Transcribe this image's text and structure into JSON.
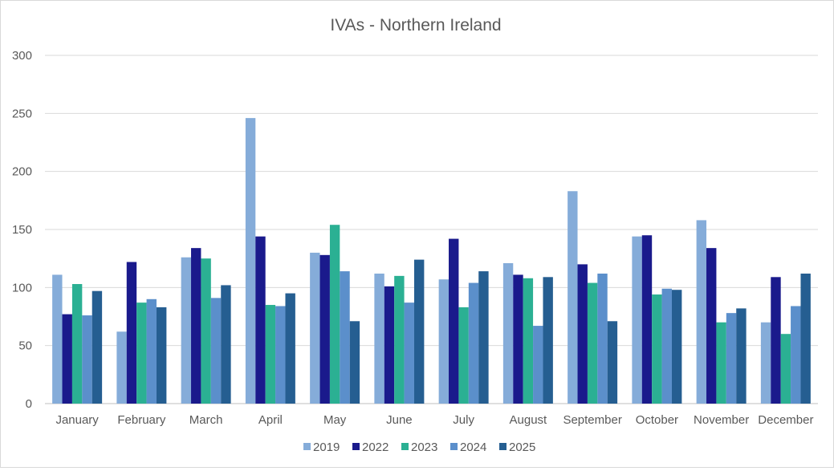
{
  "chart_data": {
    "type": "bar",
    "title": "IVAs - Northern Ireland",
    "xlabel": "",
    "ylabel": "",
    "ylim": [
      0,
      300
    ],
    "yticks": [
      0,
      50,
      100,
      150,
      200,
      250,
      300
    ],
    "grid": true,
    "legend_position": "bottom",
    "categories": [
      "January",
      "February",
      "March",
      "April",
      "May",
      "June",
      "July",
      "August",
      "September",
      "October",
      "November",
      "December"
    ],
    "series": [
      {
        "name": "2019",
        "color": "#85acd9",
        "values": [
          111,
          62,
          126,
          246,
          130,
          112,
          107,
          121,
          183,
          144,
          158,
          70
        ]
      },
      {
        "name": "2022",
        "color": "#1a1a8c",
        "values": [
          77,
          122,
          134,
          144,
          128,
          101,
          142,
          111,
          120,
          145,
          134,
          109
        ]
      },
      {
        "name": "2023",
        "color": "#2bb093",
        "values": [
          103,
          87,
          125,
          85,
          154,
          110,
          83,
          108,
          104,
          94,
          70,
          60
        ]
      },
      {
        "name": "2024",
        "color": "#5b8fcb",
        "values": [
          76,
          90,
          91,
          84,
          114,
          87,
          104,
          67,
          112,
          99,
          78,
          84
        ]
      },
      {
        "name": "2025",
        "color": "#255e91",
        "values": [
          97,
          83,
          102,
          95,
          71,
          124,
          114,
          109,
          71,
          98,
          82,
          112
        ]
      }
    ]
  }
}
